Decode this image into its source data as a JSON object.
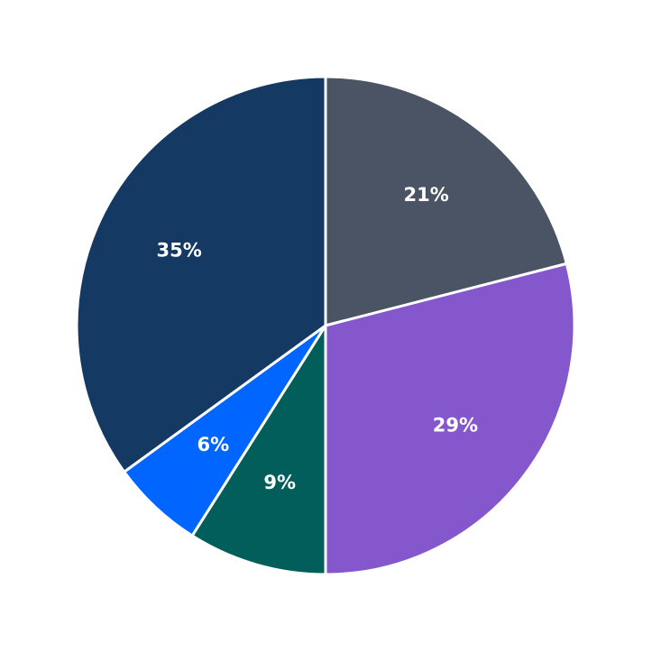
{
  "chart_data": {
    "type": "pie",
    "values": [
      21,
      29,
      9,
      6,
      35
    ],
    "value_labels": [
      "21%",
      "29%",
      "9%",
      "6%",
      "35%"
    ],
    "colors": [
      "#4a5464",
      "#8557cc",
      "#025e5a",
      "#0066ff",
      "#143962"
    ]
  }
}
